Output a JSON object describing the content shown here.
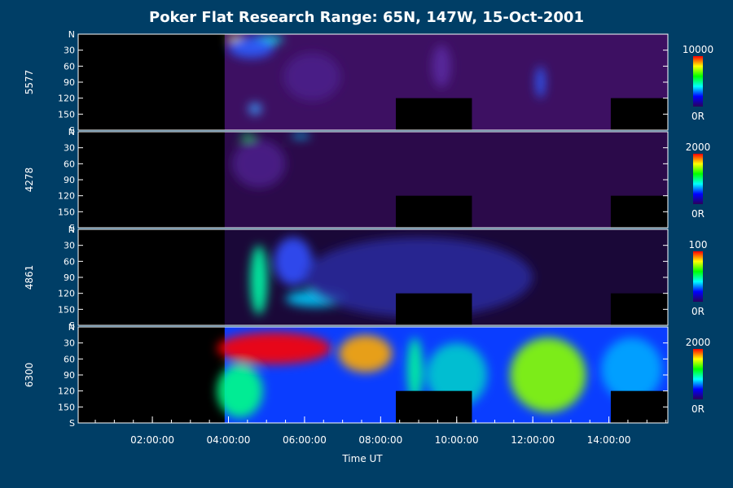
{
  "chart_data": {
    "type": "heatmap",
    "title": "Poker Flat Research Range: 65N, 147W, 15-Oct-2001",
    "xlabel": "Time UT",
    "x_ticks": [
      "02:00:00",
      "04:00:00",
      "06:00:00",
      "08:00:00",
      "10:00:00",
      "12:00:00",
      "14:00:00"
    ],
    "x_tick_hours": [
      2,
      4,
      6,
      8,
      10,
      12,
      14
    ],
    "x_range_hours": [
      0.05,
      15.55
    ],
    "y_ticks": [
      "N",
      "30",
      "60",
      "90",
      "120",
      "150",
      "S"
    ],
    "y_tick_values": [
      0,
      30,
      60,
      90,
      120,
      150,
      180
    ],
    "y_range": [
      0,
      180
    ],
    "colorbar_colors": [
      "#2a005a",
      "#0000ff",
      "#00ffff",
      "#00ff00",
      "#ffff00",
      "#ff0000"
    ],
    "panels": [
      {
        "name": "5577",
        "colorbar_max": "10000",
        "colorbar_min": "0R",
        "background": "#3d1062",
        "gaps_hours": [
          [
            8.4,
            10.4
          ],
          [
            14.05,
            15.55
          ]
        ],
        "blobs": [
          {
            "x": 4.2,
            "y": 8,
            "w": 0.5,
            "h": 10,
            "c": "#ffff00"
          },
          {
            "x": 5.0,
            "y": 10,
            "w": 0.9,
            "h": 14,
            "c": "#00ffff"
          },
          {
            "x": 4.6,
            "y": 25,
            "w": 1.2,
            "h": 40,
            "c": "#2b5cff"
          },
          {
            "x": 4.7,
            "y": 140,
            "w": 0.35,
            "h": 22,
            "c": "#3aa0ff"
          },
          {
            "x": 12.2,
            "y": 90,
            "w": 0.25,
            "h": 60,
            "c": "#2b5cff"
          },
          {
            "x": 9.6,
            "y": 60,
            "w": 0.5,
            "h": 80,
            "c": "#5a2aa0"
          },
          {
            "x": 6.2,
            "y": 80,
            "w": 1.5,
            "h": 90,
            "c": "#4a1f8a"
          }
        ]
      },
      {
        "name": "4278",
        "colorbar_max": "2000",
        "colorbar_min": "0R",
        "background": "#2b0a4a",
        "gaps_hours": [
          [
            8.4,
            10.4
          ],
          [
            14.05,
            15.55
          ]
        ],
        "blobs": [
          {
            "x": 4.5,
            "y": 10,
            "w": 0.4,
            "h": 8,
            "c": "#00ff66"
          },
          {
            "x": 5.9,
            "y": 8,
            "w": 0.5,
            "h": 8,
            "c": "#00ccff"
          },
          {
            "x": 4.8,
            "y": 60,
            "w": 1.4,
            "h": 90,
            "c": "#4a1f8a"
          }
        ]
      },
      {
        "name": "4861",
        "colorbar_max": "100",
        "colorbar_min": "0R",
        "background": "#1a0838",
        "gaps_hours": [
          [
            8.4,
            10.4
          ],
          [
            14.05,
            15.55
          ]
        ],
        "blobs": [
          {
            "x": 4.8,
            "y": 95,
            "w": 0.45,
            "h": 130,
            "c": "#00ffaa"
          },
          {
            "x": 6.3,
            "y": 130,
            "w": 1.6,
            "h": 30,
            "c": "#00ccff"
          },
          {
            "x": 5.7,
            "y": 60,
            "w": 1.0,
            "h": 90,
            "c": "#3050ff"
          },
          {
            "x": 9.0,
            "y": 90,
            "w": 6.0,
            "h": 150,
            "c": "#2a2a9a"
          }
        ]
      },
      {
        "name": "6300",
        "colorbar_max": "2000",
        "colorbar_min": "0R",
        "background": "#0a3dff",
        "gaps_hours": [
          [
            8.4,
            10.4
          ],
          [
            14.05,
            15.55
          ]
        ],
        "blobs": [
          {
            "x": 5.2,
            "y": 40,
            "w": 3.0,
            "h": 60,
            "c": "#ff0000"
          },
          {
            "x": 7.6,
            "y": 50,
            "w": 1.4,
            "h": 70,
            "c": "#ffaa00"
          },
          {
            "x": 4.3,
            "y": 120,
            "w": 1.2,
            "h": 100,
            "c": "#00ff88"
          },
          {
            "x": 12.4,
            "y": 90,
            "w": 2.0,
            "h": 140,
            "c": "#88ff00"
          },
          {
            "x": 10.0,
            "y": 90,
            "w": 1.6,
            "h": 120,
            "c": "#00cccc"
          },
          {
            "x": 14.6,
            "y": 80,
            "w": 1.6,
            "h": 120,
            "c": "#00aaff"
          },
          {
            "x": 8.9,
            "y": 80,
            "w": 0.4,
            "h": 120,
            "c": "#00ff99"
          }
        ]
      }
    ]
  }
}
